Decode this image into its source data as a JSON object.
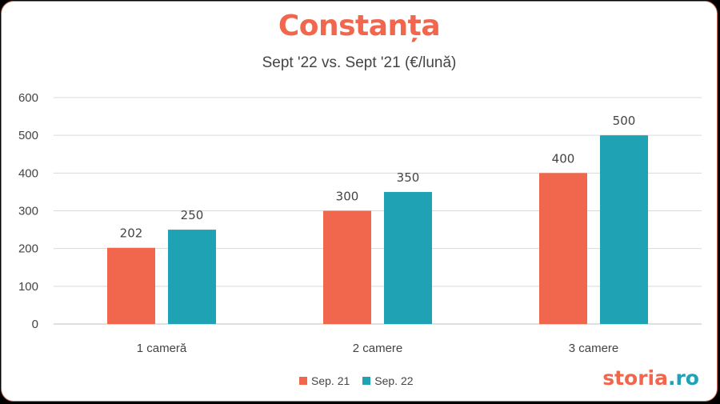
{
  "title": "Constanța",
  "subtitle": "Sept '22 vs. Sept '21 (€/lună)",
  "logo": {
    "main": "storia",
    "suffix": ".ro"
  },
  "colors": {
    "sep21": "#f0674d",
    "sep22": "#1fa2b4",
    "grid": "#d9d9d9"
  },
  "chart_data": {
    "type": "bar",
    "categories": [
      "1 cameră",
      "2 camere",
      "3 camere"
    ],
    "series": [
      {
        "name": "Sep. 21",
        "values": [
          202,
          300,
          400
        ]
      },
      {
        "name": "Sep. 22",
        "values": [
          250,
          350,
          500
        ]
      }
    ],
    "yticks": [
      "0",
      "100",
      "200",
      "300",
      "400",
      "500",
      "600"
    ],
    "ylim": [
      0,
      600
    ],
    "grid": true,
    "legend": "bottom"
  }
}
